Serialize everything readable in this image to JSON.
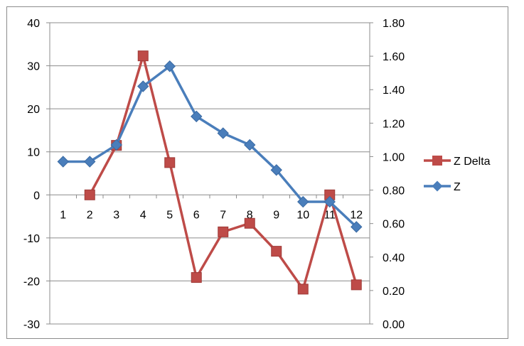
{
  "chart_data": {
    "type": "line",
    "categories": [
      "1",
      "2",
      "3",
      "4",
      "5",
      "6",
      "7",
      "8",
      "9",
      "10",
      "11",
      "12"
    ],
    "series": [
      {
        "name": "Z Delta",
        "axis": "left",
        "color": "#be4b48",
        "marker": "square",
        "values": [
          null,
          0,
          11.5,
          32.3,
          7.5,
          -19.2,
          -8.6,
          -6.6,
          -13.1,
          -21.9,
          0,
          -20.9
        ]
      },
      {
        "name": "Z",
        "axis": "right",
        "color": "#4a7ebb",
        "marker": "diamond",
        "values": [
          0.97,
          0.97,
          1.07,
          1.42,
          1.54,
          1.24,
          1.14,
          1.07,
          0.92,
          0.73,
          0.73,
          0.58
        ]
      }
    ],
    "y_left": {
      "ylim": [
        -30,
        40
      ],
      "ticks": [
        "40",
        "30",
        "20",
        "10",
        "0",
        "-10",
        "-20",
        "-30"
      ],
      "tick_values": [
        40,
        30,
        20,
        10,
        0,
        -10,
        -20,
        -30
      ]
    },
    "y_right": {
      "ylim": [
        0,
        1.8
      ],
      "ticks": [
        "1.80",
        "1.60",
        "1.40",
        "1.20",
        "1.00",
        "0.80",
        "0.60",
        "0.40",
        "0.20",
        "0.00"
      ],
      "tick_values": [
        1.8,
        1.6,
        1.4,
        1.2,
        1.0,
        0.8,
        0.6,
        0.4,
        0.2,
        0.0
      ]
    },
    "grid": true,
    "legend": {
      "position": "right",
      "order": [
        "Z Delta",
        "Z"
      ]
    }
  }
}
